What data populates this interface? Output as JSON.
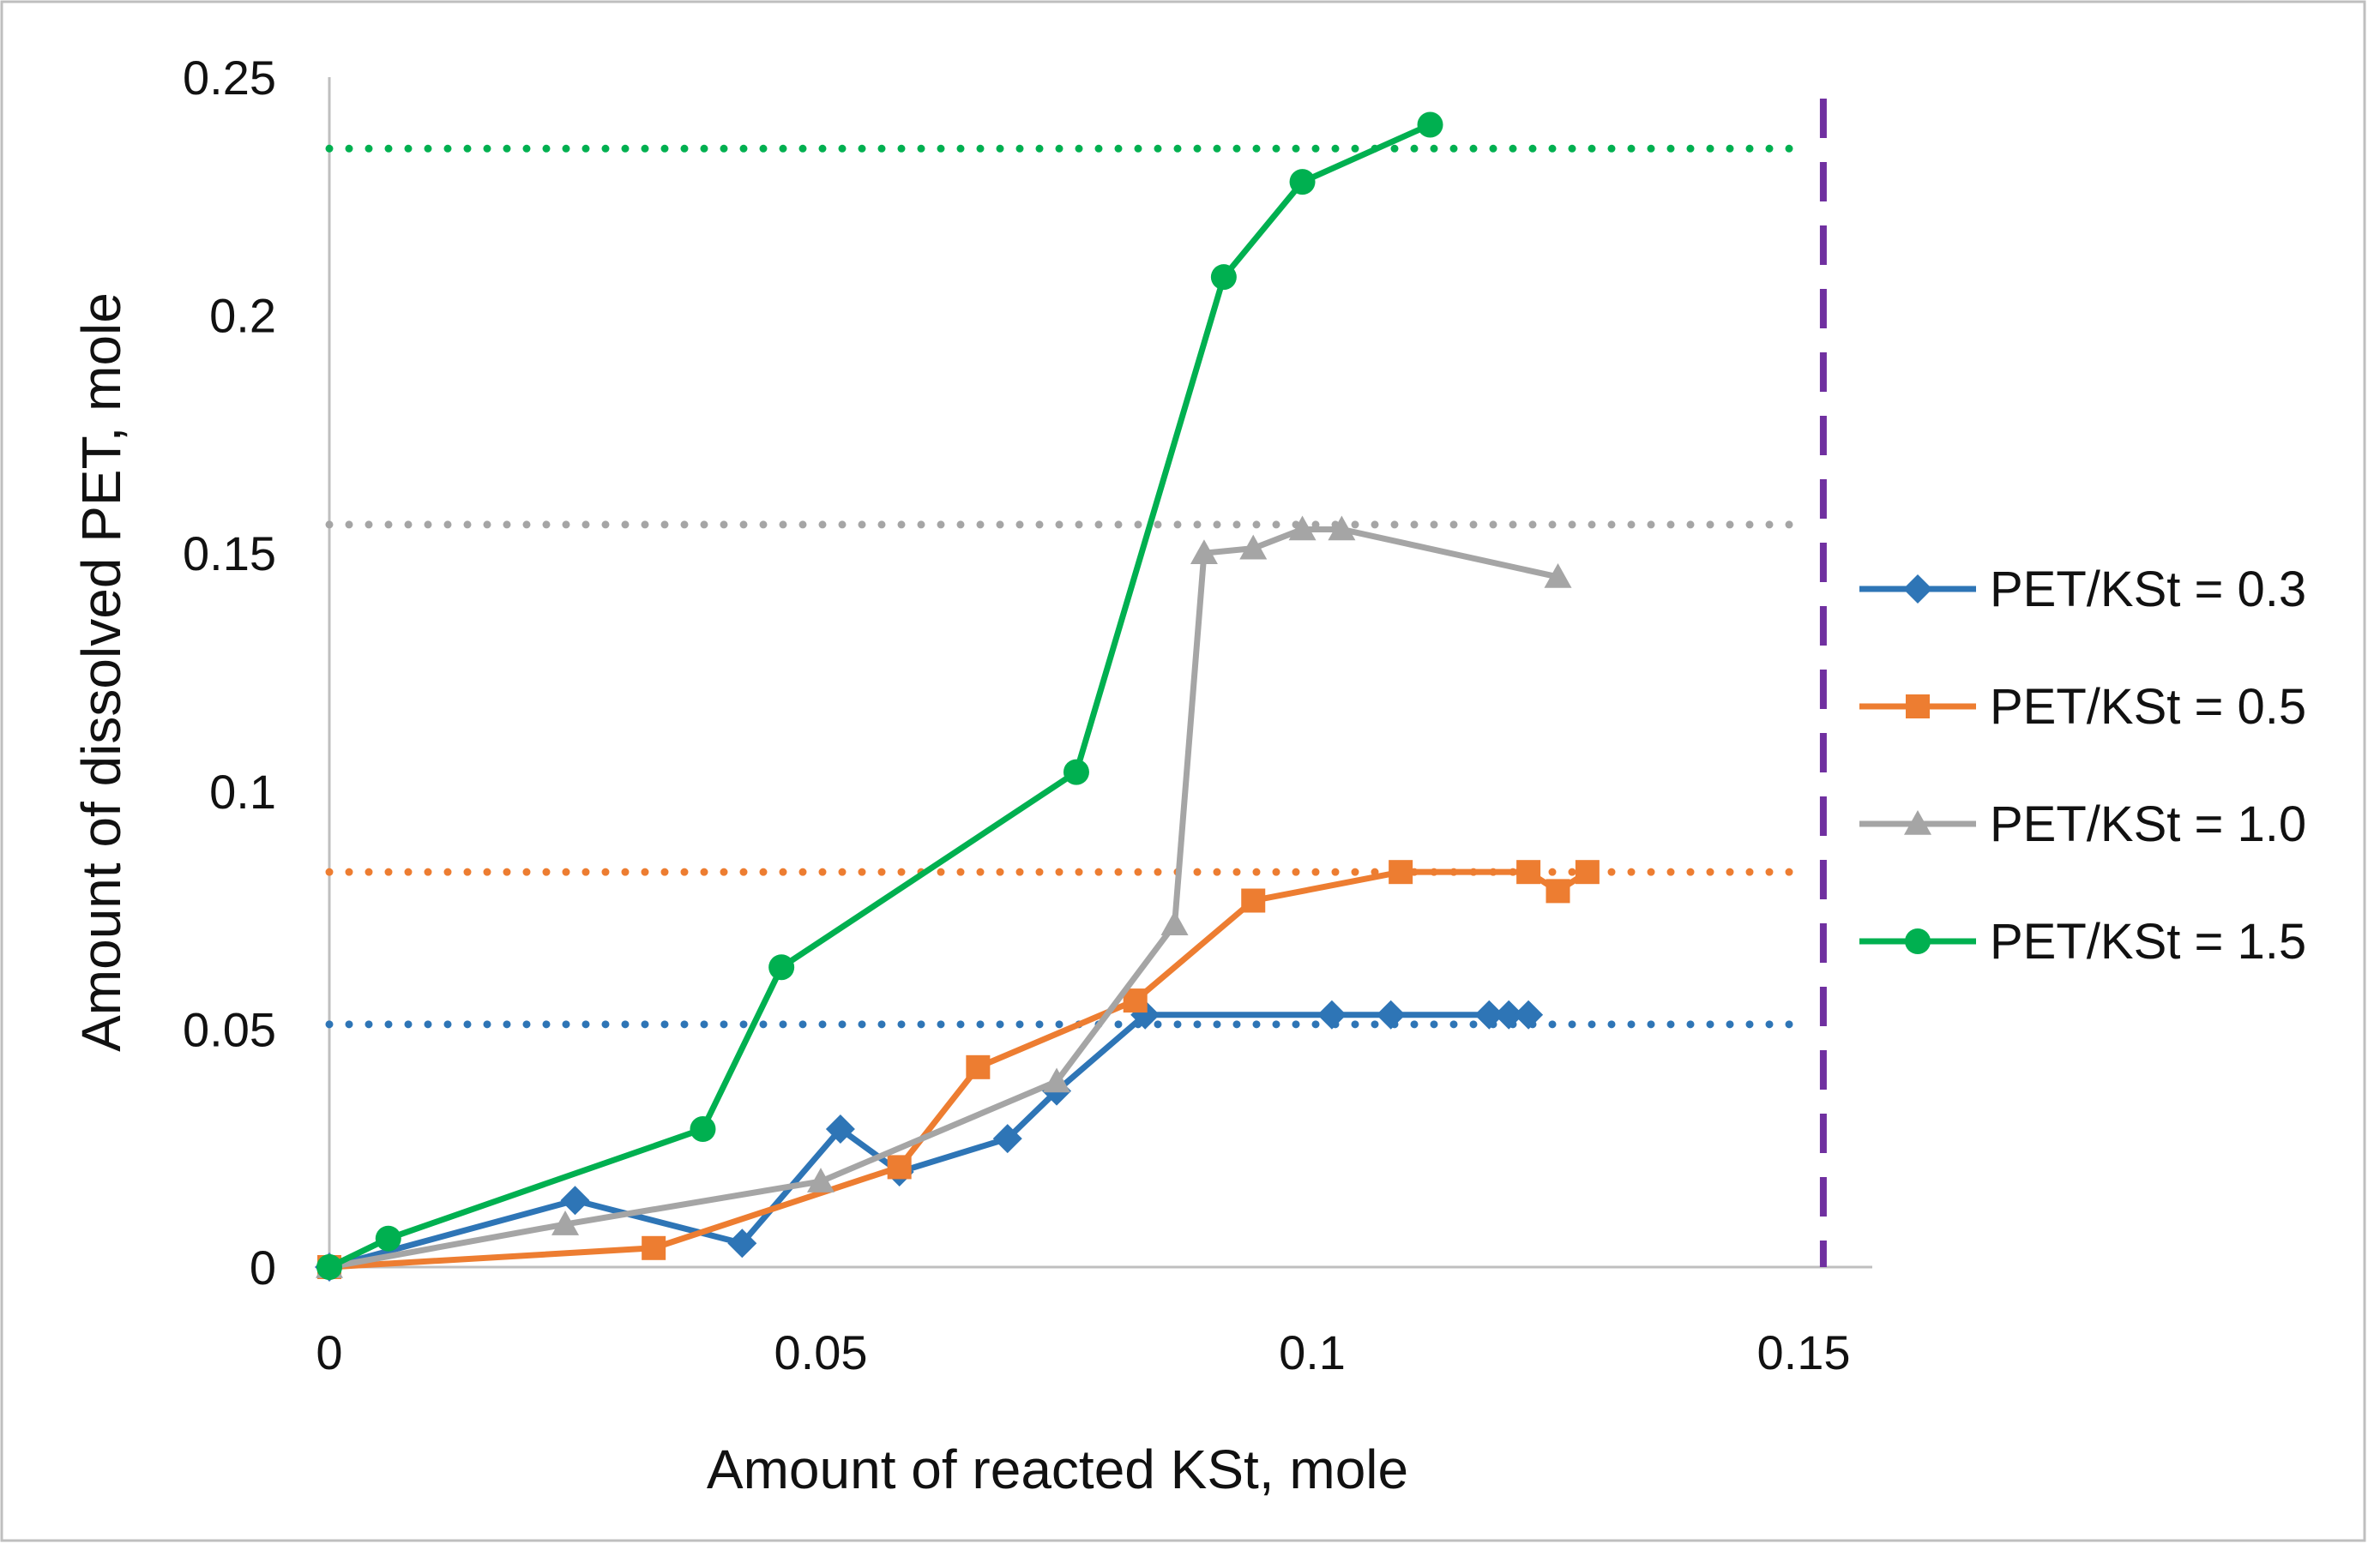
{
  "chart_data": {
    "type": "line",
    "title": "",
    "xlabel": "Amount of reacted KSt, mole",
    "ylabel": "Amount of dissolved PET, mole",
    "xlim": [
      0,
      0.16
    ],
    "ylim": [
      0,
      0.25
    ],
    "x_ticks": [
      0,
      0.05,
      0.1,
      0.15
    ],
    "x_tick_labels": [
      "0",
      "0.05",
      "0.1",
      "0.15"
    ],
    "y_ticks": [
      0,
      0.05,
      0.1,
      0.15,
      0.2,
      0.25
    ],
    "y_tick_labels": [
      "0",
      "0.05",
      "0.1",
      "0.15",
      "0.2",
      "0.25"
    ],
    "grid": false,
    "legend_position": "right",
    "series": [
      {
        "name": "PET/KSt = 0.3",
        "color": "#2E75B6",
        "marker": "diamond",
        "x": [
          0,
          0.025,
          0.042,
          0.052,
          0.058,
          0.069,
          0.074,
          0.083,
          0.102,
          0.108,
          0.118,
          0.12,
          0.122
        ],
        "y": [
          0,
          0.014,
          0.005,
          0.029,
          0.02,
          0.027,
          0.037,
          0.053,
          0.053,
          0.053,
          0.053,
          0.053,
          0.053
        ],
        "limit": 0.051
      },
      {
        "name": "PET/KSt = 0.5",
        "color": "#ED7D31",
        "marker": "square",
        "x": [
          0,
          0.033,
          0.058,
          0.066,
          0.082,
          0.094,
          0.109,
          0.122,
          0.125,
          0.128
        ],
        "y": [
          0,
          0.004,
          0.021,
          0.042,
          0.056,
          0.077,
          0.083,
          0.083,
          0.079,
          0.083
        ],
        "limit": 0.083
      },
      {
        "name": "PET/KSt = 1.0",
        "color": "#A5A5A5",
        "marker": "triangle",
        "x": [
          0,
          0.024,
          0.05,
          0.074,
          0.086,
          0.089,
          0.094,
          0.099,
          0.103,
          0.125
        ],
        "y": [
          0,
          0.009,
          0.018,
          0.039,
          0.072,
          0.15,
          0.151,
          0.155,
          0.155,
          0.145
        ],
        "limit": 0.156
      },
      {
        "name": "PET/KSt = 1.5",
        "color": "#00B050",
        "marker": "circle",
        "x": [
          0,
          0.006,
          0.038,
          0.046,
          0.076,
          0.091,
          0.099,
          0.112
        ],
        "y": [
          0,
          0.006,
          0.029,
          0.063,
          0.104,
          0.208,
          0.228,
          0.24
        ],
        "limit": 0.235
      }
    ],
    "annotations": [
      {
        "type": "vertical-dashed-line",
        "x": 0.152,
        "color": "#7030A0"
      }
    ]
  }
}
